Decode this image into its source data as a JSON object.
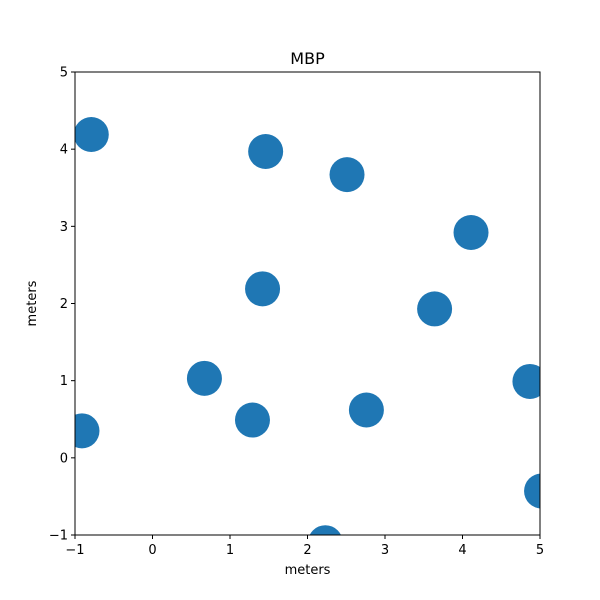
{
  "chart_data": {
    "type": "scatter",
    "title": "MBP",
    "xlabel": "meters",
    "ylabel": "meters",
    "xlim": [
      -1,
      5
    ],
    "ylim": [
      -1,
      5
    ],
    "xticks": [
      -1,
      0,
      1,
      2,
      3,
      4,
      5
    ],
    "yticks": [
      -1,
      0,
      1,
      2,
      3,
      4,
      5
    ],
    "grid": false,
    "marker_color": "#1f77b4",
    "series": [
      {
        "points": [
          {
            "x": -0.79,
            "y": 4.19
          },
          {
            "x": 1.46,
            "y": 3.97
          },
          {
            "x": 2.51,
            "y": 3.67
          },
          {
            "x": 4.11,
            "y": 2.92
          },
          {
            "x": 1.42,
            "y": 2.19
          },
          {
            "x": 3.64,
            "y": 1.93
          },
          {
            "x": 0.67,
            "y": 1.03
          },
          {
            "x": 4.87,
            "y": 0.99
          },
          {
            "x": 2.76,
            "y": 0.62
          },
          {
            "x": 1.29,
            "y": 0.49
          },
          {
            "x": -0.91,
            "y": 0.35
          },
          {
            "x": 5.02,
            "y": -0.43
          },
          {
            "x": 2.23,
            "y": -1.1
          }
        ]
      }
    ]
  }
}
